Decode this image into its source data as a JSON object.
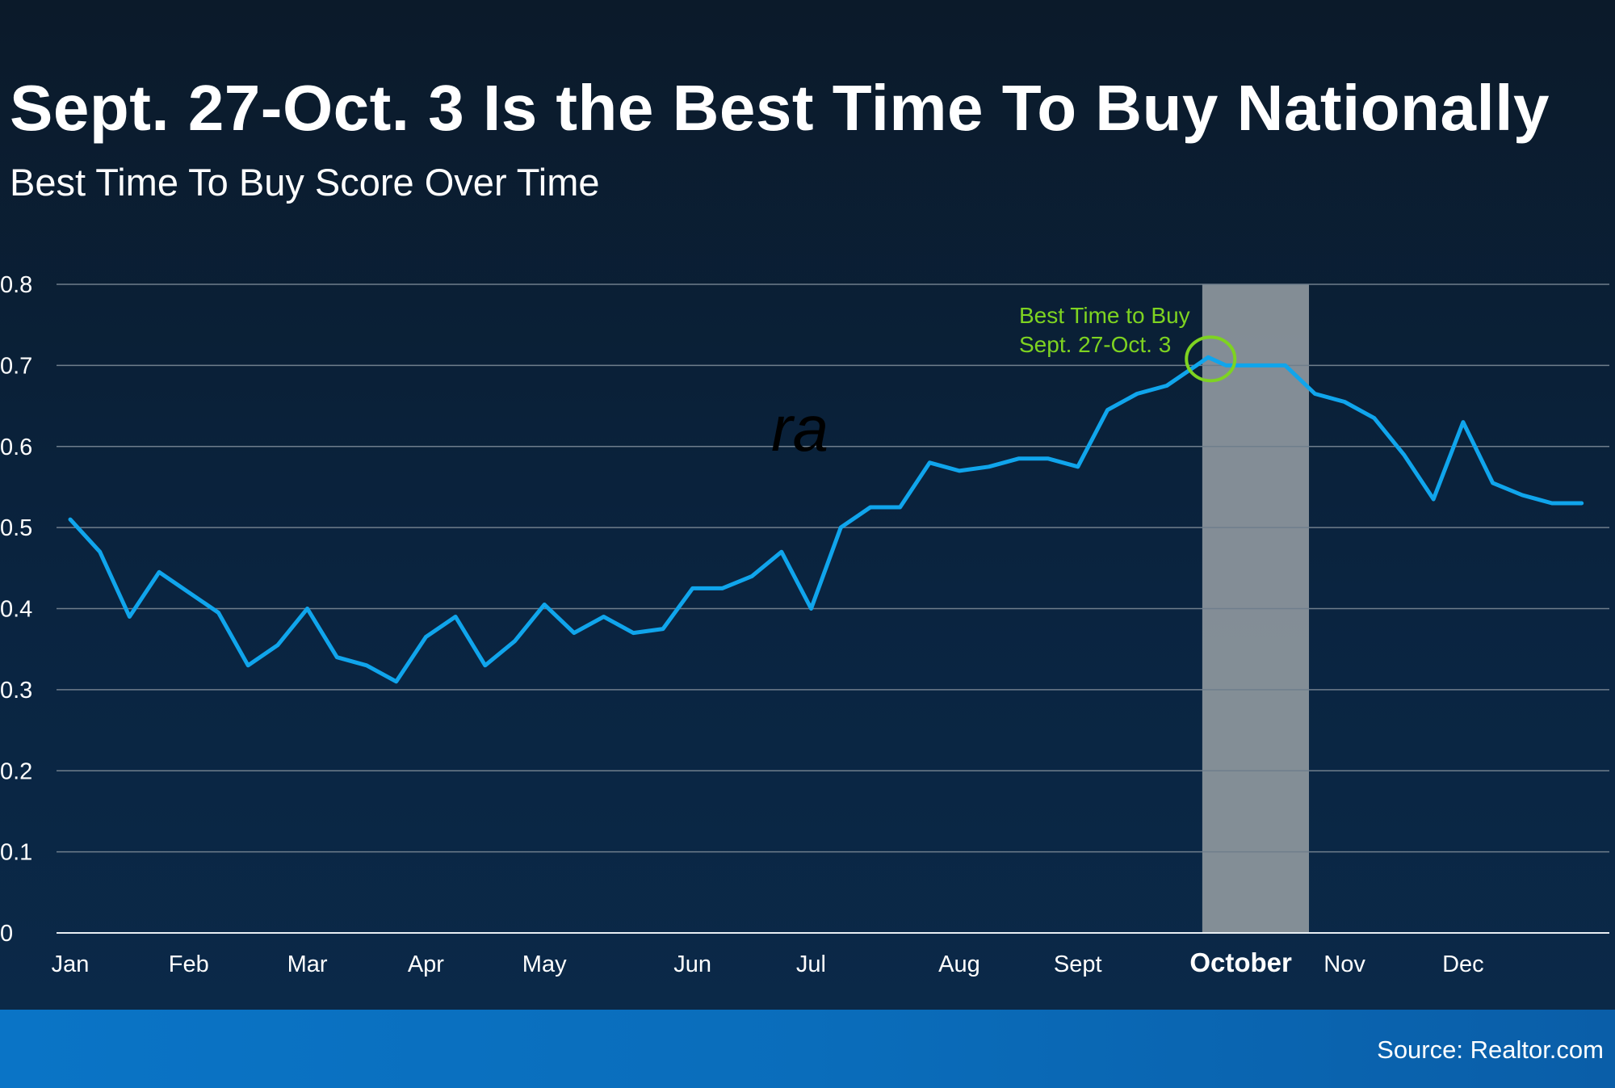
{
  "chart_data": {
    "type": "line",
    "title": "Sept. 27-Oct. 3 Is the Best Time To Buy Nationally",
    "subtitle": "Best Time To Buy Score Over Time",
    "xlabel": "",
    "ylabel": "",
    "ylim": [
      0,
      0.8
    ],
    "yticks": [
      "0",
      "0.1",
      "0.2",
      "0.3",
      "0.4",
      "0.5",
      "0.6",
      "0.7",
      "0.8"
    ],
    "xlim": [
      1,
      52.5
    ],
    "month_labels": [
      {
        "label": "Jan",
        "week": 1
      },
      {
        "label": "Feb",
        "week": 5
      },
      {
        "label": "Mar",
        "week": 9
      },
      {
        "label": "Apr",
        "week": 13
      },
      {
        "label": "May",
        "week": 17
      },
      {
        "label": "Jun",
        "week": 22
      },
      {
        "label": "Jul",
        "week": 26
      },
      {
        "label": "Aug",
        "week": 31
      },
      {
        "label": "Sept",
        "week": 35
      },
      {
        "label": "October",
        "week": 40.5,
        "bold": true
      },
      {
        "label": "Nov",
        "week": 44
      },
      {
        "label": "Dec",
        "week": 48
      }
    ],
    "highlight": {
      "label": "October",
      "start_week": 39.2,
      "end_week": 42.8,
      "color": "#8a949b"
    },
    "annotation": {
      "lines": [
        "Best Time to Buy",
        "Sept. 27-Oct. 3"
      ],
      "week": 39.4,
      "value": 0.71,
      "color": "#7ed321"
    },
    "grid": true,
    "series_color": "#10a5ec",
    "x": [
      1,
      2,
      3,
      4,
      5,
      6,
      7,
      8,
      9,
      10,
      11,
      12,
      13,
      14,
      15,
      16,
      17,
      18,
      19,
      20,
      21,
      22,
      23,
      24,
      25,
      26,
      27,
      28,
      29,
      30,
      31,
      32,
      33,
      34,
      35,
      36,
      37,
      38,
      39,
      39.4,
      40,
      41,
      42,
      43,
      44,
      45,
      46,
      47,
      48,
      49,
      50,
      51,
      52
    ],
    "values": [
      0.51,
      0.47,
      0.39,
      0.445,
      0.42,
      0.395,
      0.33,
      0.355,
      0.4,
      0.34,
      0.33,
      0.31,
      0.365,
      0.39,
      0.33,
      0.36,
      0.405,
      0.37,
      0.39,
      0.37,
      0.375,
      0.425,
      0.425,
      0.44,
      0.47,
      0.4,
      0.5,
      0.525,
      0.525,
      0.58,
      0.57,
      0.575,
      0.585,
      0.585,
      0.575,
      0.645,
      0.665,
      0.675,
      0.7,
      0.71,
      0.7,
      0.7,
      0.7,
      0.665,
      0.655,
      0.635,
      0.59,
      0.535,
      0.63,
      0.555,
      0.54,
      0.53,
      0.53
    ]
  },
  "watermark": "ra",
  "source": "Source: Realtor.com"
}
